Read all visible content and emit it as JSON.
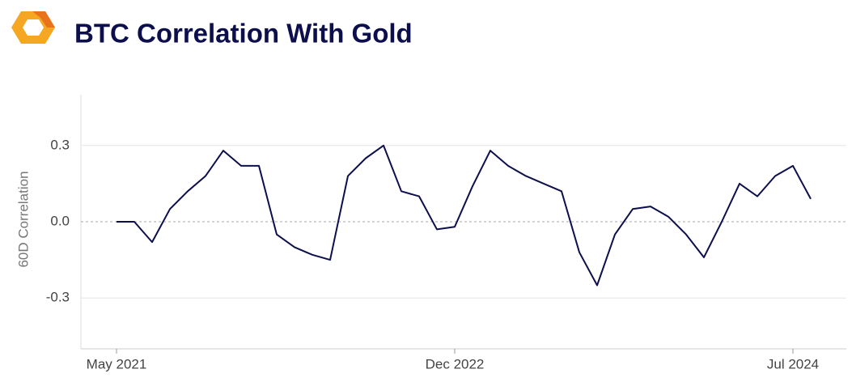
{
  "chart_data": {
    "type": "line",
    "title": "BTC Correlation With Gold",
    "y_label": "60D Correlation",
    "x": [
      "2021-05",
      "2021-06",
      "2021-07",
      "2021-08",
      "2021-09",
      "2021-10",
      "2021-11",
      "2021-12",
      "2022-01",
      "2022-02",
      "2022-03",
      "2022-04",
      "2022-05",
      "2022-06",
      "2022-07",
      "2022-08",
      "2022-09",
      "2022-10",
      "2022-11",
      "2022-12",
      "2023-01",
      "2023-02",
      "2023-03",
      "2023-04",
      "2023-05",
      "2023-06",
      "2023-07",
      "2023-08",
      "2023-09",
      "2023-10",
      "2023-11",
      "2023-12",
      "2024-01",
      "2024-02",
      "2024-03",
      "2024-04",
      "2024-05",
      "2024-06",
      "2024-07",
      "2024-08"
    ],
    "series": [
      {
        "name": "BTC Correlation With Gold",
        "color": "#0d0f4d",
        "values": [
          0.0,
          0.0,
          -0.08,
          0.05,
          0.12,
          0.18,
          0.28,
          0.22,
          0.22,
          -0.05,
          -0.1,
          -0.13,
          -0.15,
          0.18,
          0.25,
          0.3,
          0.12,
          0.1,
          -0.03,
          -0.02,
          0.14,
          0.28,
          0.22,
          0.18,
          0.15,
          0.12,
          -0.12,
          -0.25,
          -0.05,
          0.05,
          0.06,
          0.02,
          -0.05,
          -0.14,
          0.0,
          0.15,
          0.1,
          0.18,
          0.22,
          0.09
        ]
      }
    ],
    "xlim": [
      "2021-03",
      "2024-10"
    ],
    "xticks": [
      {
        "value": "2021-05",
        "label": "May 2021"
      },
      {
        "value": "2022-12",
        "label": "Dec 2022"
      },
      {
        "value": "2024-07",
        "label": "Jul 2024"
      }
    ],
    "ylim": [
      -0.5,
      0.5
    ],
    "yticks": [
      {
        "value": -0.3,
        "label": "-0.3"
      },
      {
        "value": 0,
        "label": "0.0"
      },
      {
        "value": 0.3,
        "label": "0.3"
      }
    ],
    "grid": true
  }
}
